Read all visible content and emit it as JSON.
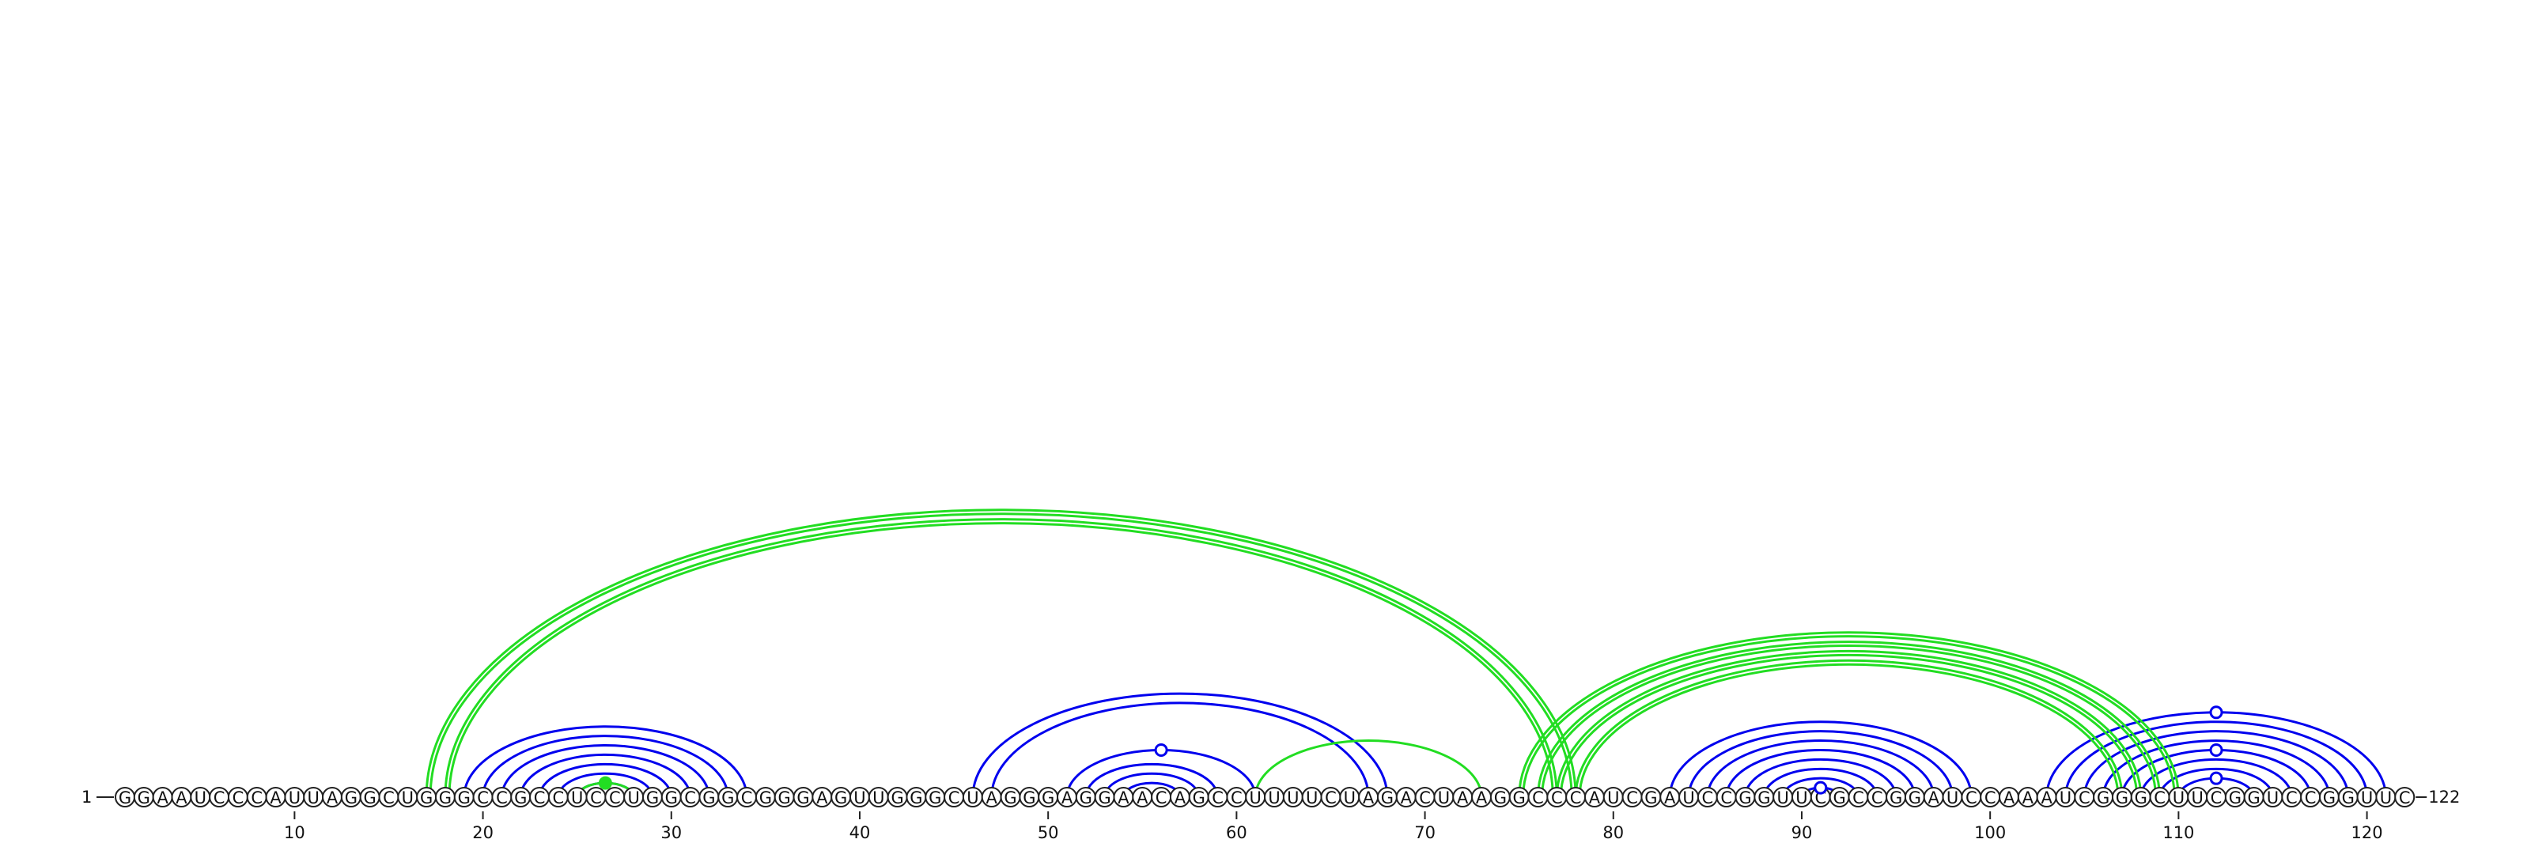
{
  "sequence": "GGAAUCCCAUUAGGCUGGGCCGCCUCCUGGCGGCGGGAGUUGGGCUAGGGAGGAACAGCCUUUUCUAGACUAAGGCCCAUCGAUCCGGUUCGCCGGAUCCAAAUCGGGCUUCGGUCCGGUUC",
  "start_label": "1",
  "end_label": "122",
  "ticks": [
    {
      "pos": 10,
      "label": "10"
    },
    {
      "pos": 20,
      "label": "20"
    },
    {
      "pos": 30,
      "label": "30"
    },
    {
      "pos": 40,
      "label": "40"
    },
    {
      "pos": 50,
      "label": "50"
    },
    {
      "pos": 60,
      "label": "60"
    },
    {
      "pos": 70,
      "label": "70"
    },
    {
      "pos": 80,
      "label": "80"
    },
    {
      "pos": 90,
      "label": "90"
    },
    {
      "pos": 100,
      "label": "100"
    },
    {
      "pos": 110,
      "label": "110"
    },
    {
      "pos": 120,
      "label": "120"
    }
  ],
  "colors": {
    "secondary_pair": "#0000ee",
    "tertiary_pair": "#22dd22",
    "nucleotide_outline": "#222222"
  },
  "blue_pairs": [
    [
      19,
      34
    ],
    [
      20,
      33
    ],
    [
      21,
      32
    ],
    [
      22,
      31
    ],
    [
      23,
      30
    ],
    [
      24,
      29
    ],
    [
      25,
      28
    ],
    [
      46,
      68
    ],
    [
      47,
      67
    ],
    [
      51,
      61
    ],
    [
      52,
      59
    ],
    [
      53,
      58
    ],
    [
      54,
      57
    ],
    [
      83,
      99
    ],
    [
      84,
      98
    ],
    [
      85,
      97
    ],
    [
      86,
      96
    ],
    [
      87,
      95
    ],
    [
      88,
      94
    ],
    [
      89,
      93
    ],
    [
      90,
      92
    ],
    [
      103,
      121
    ],
    [
      104,
      120
    ],
    [
      105,
      119
    ],
    [
      106,
      118
    ],
    [
      107,
      117
    ],
    [
      108,
      116
    ],
    [
      109,
      115
    ],
    [
      110,
      114
    ]
  ],
  "green_pairs": [
    [
      17,
      78
    ],
    [
      18,
      77
    ],
    [
      25,
      28
    ],
    [
      61,
      73
    ],
    [
      75,
      110
    ],
    [
      76,
      109
    ],
    [
      77,
      108
    ],
    [
      78,
      107
    ]
  ],
  "green_double_pairs": [
    [
      17,
      78
    ],
    [
      18,
      77
    ],
    [
      75,
      110
    ],
    [
      76,
      109
    ],
    [
      77,
      108
    ],
    [
      78,
      107
    ]
  ],
  "apex_markers": [
    {
      "a": 51,
      "b": 61,
      "color": "blue",
      "filled": false
    },
    {
      "a": 90,
      "b": 92,
      "color": "blue",
      "filled": false
    },
    {
      "a": 103,
      "b": 121,
      "color": "blue",
      "filled": false
    },
    {
      "a": 107,
      "b": 117,
      "color": "blue",
      "filled": false
    },
    {
      "a": 110,
      "b": 114,
      "color": "blue",
      "filled": false
    },
    {
      "a": 25,
      "b": 28,
      "color": "green",
      "filled": true
    }
  ]
}
